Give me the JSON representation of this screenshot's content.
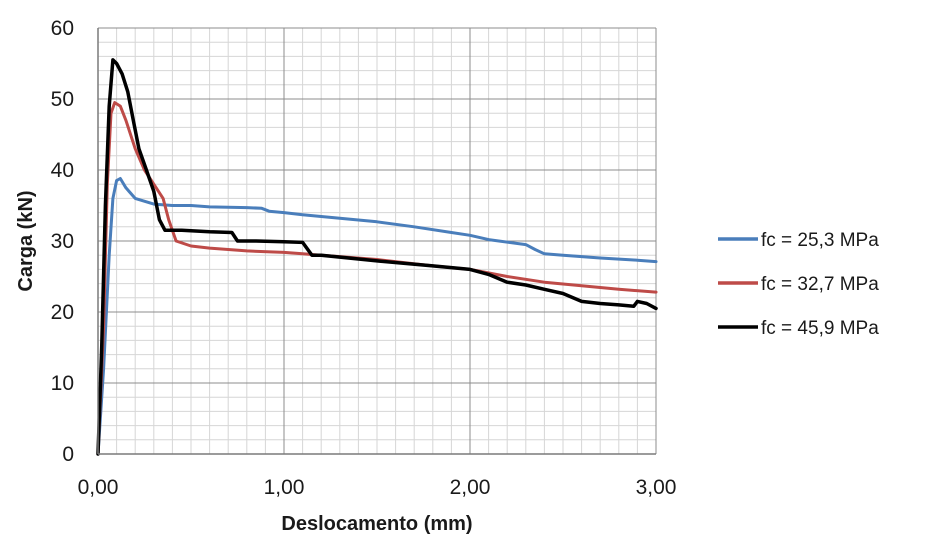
{
  "chart_data": {
    "type": "line",
    "title": "",
    "xlabel": "Deslocamento (mm)",
    "ylabel": "Carga (kN)",
    "xlim": [
      0,
      3
    ],
    "ylim": [
      0,
      60
    ],
    "x_ticks": [
      0,
      1,
      2,
      3
    ],
    "x_tick_labels": [
      "0,00",
      "1,00",
      "2,00",
      "3,00"
    ],
    "y_ticks": [
      0,
      10,
      20,
      30,
      40,
      50,
      60
    ],
    "y_tick_labels": [
      "0",
      "10",
      "20",
      "30",
      "40",
      "50",
      "60"
    ],
    "grid": "major and minor",
    "legend_position": "right",
    "series": [
      {
        "name": "fc = 25,3 MPa",
        "color": "#4a7ebb",
        "points": [
          [
            0,
            0
          ],
          [
            0.03,
            12
          ],
          [
            0.06,
            28
          ],
          [
            0.08,
            36
          ],
          [
            0.1,
            38.5
          ],
          [
            0.12,
            38.8
          ],
          [
            0.15,
            37.5
          ],
          [
            0.2,
            36
          ],
          [
            0.3,
            35.2
          ],
          [
            0.4,
            35
          ],
          [
            0.5,
            35
          ],
          [
            0.6,
            34.8
          ],
          [
            0.8,
            34.7
          ],
          [
            0.88,
            34.6
          ],
          [
            0.92,
            34.2
          ],
          [
            1.0,
            34
          ],
          [
            1.1,
            33.7
          ],
          [
            1.3,
            33.2
          ],
          [
            1.5,
            32.7
          ],
          [
            1.7,
            32
          ],
          [
            1.9,
            31.2
          ],
          [
            2.0,
            30.8
          ],
          [
            2.1,
            30.2
          ],
          [
            2.3,
            29.5
          ],
          [
            2.35,
            28.8
          ],
          [
            2.4,
            28.2
          ],
          [
            2.5,
            28
          ],
          [
            2.7,
            27.6
          ],
          [
            2.9,
            27.3
          ],
          [
            3.0,
            27.1
          ]
        ]
      },
      {
        "name": "fc = 32,7 MPa",
        "color": "#be4b48",
        "points": [
          [
            0,
            0
          ],
          [
            0.03,
            18
          ],
          [
            0.05,
            38
          ],
          [
            0.07,
            48
          ],
          [
            0.09,
            49.5
          ],
          [
            0.12,
            49
          ],
          [
            0.15,
            47
          ],
          [
            0.2,
            43
          ],
          [
            0.25,
            40
          ],
          [
            0.3,
            38
          ],
          [
            0.35,
            36
          ],
          [
            0.38,
            33
          ],
          [
            0.42,
            30
          ],
          [
            0.5,
            29.3
          ],
          [
            0.6,
            29
          ],
          [
            0.8,
            28.6
          ],
          [
            1.0,
            28.4
          ],
          [
            1.1,
            28.2
          ],
          [
            1.2,
            28
          ],
          [
            1.5,
            27.4
          ],
          [
            1.8,
            26.5
          ],
          [
            2.0,
            26
          ],
          [
            2.2,
            25
          ],
          [
            2.4,
            24.2
          ],
          [
            2.6,
            23.7
          ],
          [
            2.8,
            23.2
          ],
          [
            3.0,
            22.8
          ]
        ]
      },
      {
        "name": "fc = 45,9 MPa",
        "color": "#000000",
        "points": [
          [
            0,
            0
          ],
          [
            0.02,
            15
          ],
          [
            0.04,
            35
          ],
          [
            0.06,
            49
          ],
          [
            0.08,
            55.5
          ],
          [
            0.1,
            55
          ],
          [
            0.13,
            53.5
          ],
          [
            0.16,
            51
          ],
          [
            0.19,
            47
          ],
          [
            0.22,
            43
          ],
          [
            0.26,
            40
          ],
          [
            0.3,
            37
          ],
          [
            0.33,
            33
          ],
          [
            0.36,
            31.5
          ],
          [
            0.45,
            31.5
          ],
          [
            0.6,
            31.3
          ],
          [
            0.72,
            31.2
          ],
          [
            0.75,
            30
          ],
          [
            0.85,
            30
          ],
          [
            1.0,
            29.9
          ],
          [
            1.1,
            29.8
          ],
          [
            1.15,
            28
          ],
          [
            1.2,
            28
          ],
          [
            1.5,
            27.2
          ],
          [
            1.8,
            26.5
          ],
          [
            2.0,
            26
          ],
          [
            2.1,
            25.3
          ],
          [
            2.2,
            24.2
          ],
          [
            2.3,
            23.8
          ],
          [
            2.4,
            23.2
          ],
          [
            2.5,
            22.6
          ],
          [
            2.6,
            21.5
          ],
          [
            2.7,
            21.2
          ],
          [
            2.8,
            21
          ],
          [
            2.88,
            20.8
          ],
          [
            2.9,
            21.5
          ],
          [
            2.95,
            21.2
          ],
          [
            3.0,
            20.5
          ]
        ]
      }
    ]
  }
}
